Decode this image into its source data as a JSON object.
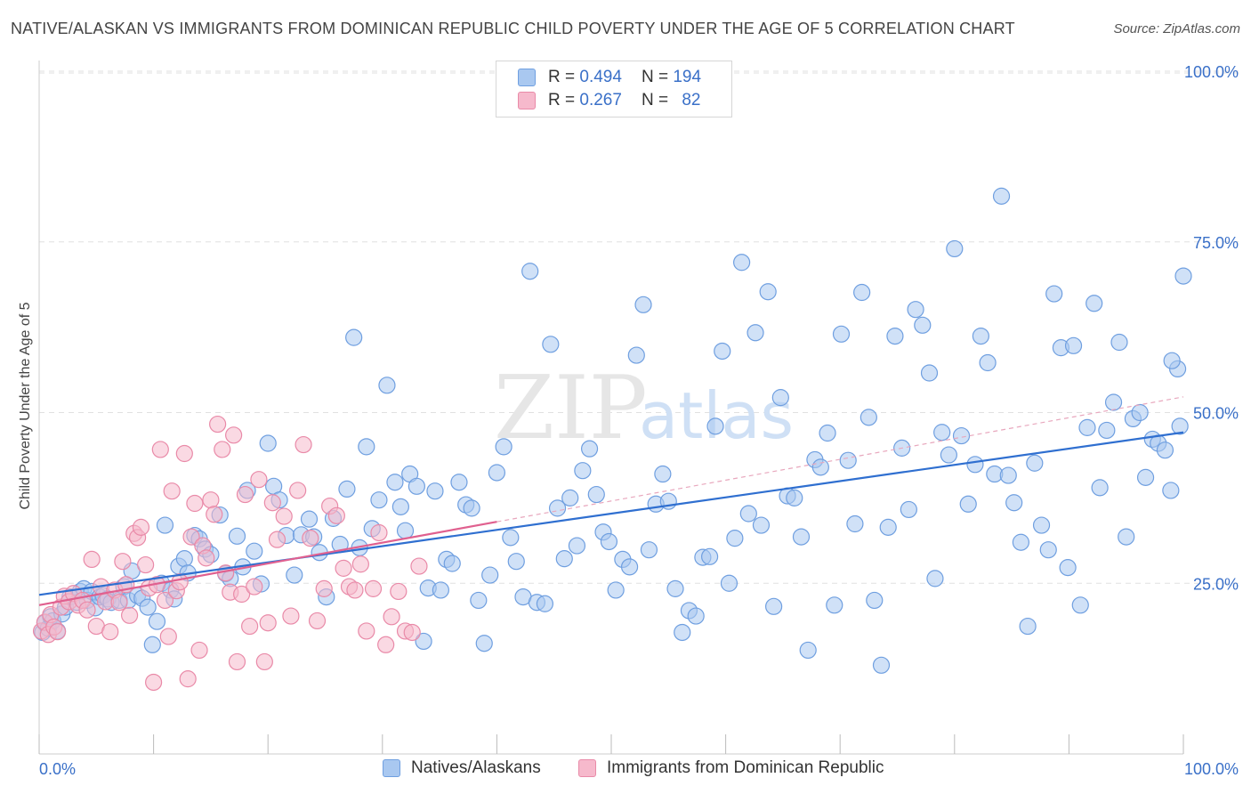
{
  "title": "NATIVE/ALASKAN VS IMMIGRANTS FROM DOMINICAN REPUBLIC CHILD POVERTY UNDER THE AGE OF 5 CORRELATION CHART",
  "source": "Source: ZipAtlas.com",
  "watermark": {
    "zip": "ZIP",
    "atlas": "atlas"
  },
  "legend": [
    {
      "r_label": "R =",
      "r_value": "0.494",
      "n_label": "N =",
      "n_value": "194"
    },
    {
      "r_label": "R =",
      "r_value": "0.267",
      "n_label": "N =",
      "n_value": "82"
    }
  ],
  "colors": {
    "blue_fill": "#a9c8f0",
    "blue_stroke": "#6f9fe0",
    "blue_line": "#2f6fd0",
    "pink_fill": "#f6b9cc",
    "pink_stroke": "#e98aa8",
    "pink_line": "#e0608f",
    "grid": "#e0e0e0",
    "axis_label": "#3a70c8"
  },
  "chart_data": {
    "type": "scatter",
    "xlabel": "",
    "ylabel": "Child Poverty Under the Age of 5",
    "xlim": [
      0,
      100
    ],
    "ylim": [
      0,
      100
    ],
    "x_tick_labels": [
      {
        "value": 0,
        "label": "0.0%"
      },
      {
        "value": 100,
        "label": "100.0%"
      }
    ],
    "y_tick_labels": [
      {
        "value": 100,
        "label": "100.0%"
      },
      {
        "value": 75,
        "label": "75.0%"
      },
      {
        "value": 50,
        "label": "50.0%"
      },
      {
        "value": 25,
        "label": "25.0%"
      }
    ],
    "grid": true,
    "series": [
      {
        "name": "Natives/Alaskans",
        "color": "#a9c8f0",
        "trend": {
          "x": [
            0,
            100
          ],
          "y": [
            23.3,
            47.1
          ]
        },
        "points": [
          [
            0.3,
            17.8
          ],
          [
            0.5,
            19.2
          ],
          [
            0.8,
            18.4
          ],
          [
            1.0,
            20.1
          ],
          [
            1.2,
            19.5
          ],
          [
            1.6,
            18.0
          ],
          [
            2.0,
            20.5
          ],
          [
            2.3,
            21.5
          ],
          [
            2.7,
            23.0
          ],
          [
            3.3,
            22.2
          ],
          [
            3.6,
            23.8
          ],
          [
            3.9,
            24.2
          ],
          [
            4.2,
            22.5
          ],
          [
            4.6,
            23.8
          ],
          [
            4.9,
            21.4
          ],
          [
            5.3,
            23.0
          ],
          [
            5.6,
            23.2
          ],
          [
            6.0,
            22.7
          ],
          [
            6.3,
            22.2
          ],
          [
            7.0,
            22.5
          ],
          [
            7.4,
            24.5
          ],
          [
            7.8,
            22.5
          ],
          [
            8.1,
            26.8
          ],
          [
            8.6,
            23.2
          ],
          [
            9.0,
            22.8
          ],
          [
            9.5,
            21.5
          ],
          [
            9.9,
            16.0
          ],
          [
            10.3,
            19.4
          ],
          [
            10.7,
            25.0
          ],
          [
            11.0,
            33.5
          ],
          [
            11.5,
            24.0
          ],
          [
            11.8,
            22.7
          ],
          [
            12.2,
            27.5
          ],
          [
            12.7,
            28.6
          ],
          [
            13.0,
            26.5
          ],
          [
            13.6,
            32.0
          ],
          [
            14.0,
            31.5
          ],
          [
            14.5,
            30.0
          ],
          [
            15.0,
            29.2
          ],
          [
            15.8,
            35.0
          ],
          [
            16.3,
            26.4
          ],
          [
            16.7,
            25.7
          ],
          [
            17.3,
            31.9
          ],
          [
            17.8,
            27.4
          ],
          [
            18.2,
            38.6
          ],
          [
            18.8,
            29.7
          ],
          [
            19.4,
            24.9
          ],
          [
            20.0,
            45.5
          ],
          [
            20.5,
            39.2
          ],
          [
            21.0,
            37.2
          ],
          [
            21.6,
            32.0
          ],
          [
            22.3,
            26.2
          ],
          [
            22.9,
            32.1
          ],
          [
            23.6,
            34.4
          ],
          [
            24.0,
            31.8
          ],
          [
            24.5,
            29.5
          ],
          [
            25.1,
            23.0
          ],
          [
            25.7,
            34.5
          ],
          [
            26.3,
            30.7
          ],
          [
            26.9,
            38.8
          ],
          [
            27.5,
            61.0
          ],
          [
            28.0,
            30.2
          ],
          [
            28.6,
            45.0
          ],
          [
            29.1,
            33.0
          ],
          [
            29.7,
            37.2
          ],
          [
            30.4,
            54.0
          ],
          [
            31.1,
            39.8
          ],
          [
            31.6,
            36.2
          ],
          [
            32.0,
            32.7
          ],
          [
            32.4,
            41.0
          ],
          [
            33.0,
            39.2
          ],
          [
            33.6,
            16.5
          ],
          [
            34.0,
            24.3
          ],
          [
            34.6,
            38.5
          ],
          [
            35.1,
            24.0
          ],
          [
            35.6,
            28.5
          ],
          [
            36.1,
            27.9
          ],
          [
            36.7,
            39.8
          ],
          [
            37.3,
            36.5
          ],
          [
            37.8,
            36.0
          ],
          [
            38.4,
            22.5
          ],
          [
            38.9,
            16.2
          ],
          [
            39.4,
            26.2
          ],
          [
            40.0,
            41.2
          ],
          [
            40.6,
            45.0
          ],
          [
            41.2,
            31.7
          ],
          [
            41.7,
            28.2
          ],
          [
            42.3,
            23.0
          ],
          [
            42.9,
            70.7
          ],
          [
            43.5,
            22.2
          ],
          [
            44.2,
            22.0
          ],
          [
            44.7,
            60.0
          ],
          [
            45.3,
            36.0
          ],
          [
            45.9,
            28.6
          ],
          [
            46.4,
            37.5
          ],
          [
            47.0,
            30.5
          ],
          [
            47.5,
            41.5
          ],
          [
            48.1,
            44.7
          ],
          [
            48.7,
            38.0
          ],
          [
            49.3,
            32.5
          ],
          [
            49.8,
            31.1
          ],
          [
            50.4,
            24.0
          ],
          [
            51.0,
            28.5
          ],
          [
            51.6,
            27.4
          ],
          [
            52.2,
            58.4
          ],
          [
            52.8,
            65.8
          ],
          [
            53.3,
            29.9
          ],
          [
            53.9,
            36.6
          ],
          [
            54.5,
            41.0
          ],
          [
            55.0,
            37.0
          ],
          [
            55.6,
            24.2
          ],
          [
            56.2,
            17.8
          ],
          [
            56.8,
            21.0
          ],
          [
            57.4,
            20.2
          ],
          [
            58.0,
            28.8
          ],
          [
            58.6,
            28.9
          ],
          [
            59.1,
            48.0
          ],
          [
            59.7,
            59.0
          ],
          [
            60.3,
            25.0
          ],
          [
            60.8,
            31.6
          ],
          [
            61.4,
            72.0
          ],
          [
            62.0,
            35.2
          ],
          [
            62.6,
            61.7
          ],
          [
            63.1,
            33.5
          ],
          [
            63.7,
            67.7
          ],
          [
            64.2,
            21.6
          ],
          [
            64.8,
            52.2
          ],
          [
            65.4,
            37.8
          ],
          [
            66.0,
            37.5
          ],
          [
            66.6,
            31.8
          ],
          [
            67.2,
            15.2
          ],
          [
            67.8,
            43.1
          ],
          [
            68.3,
            42.0
          ],
          [
            68.9,
            47.0
          ],
          [
            69.5,
            21.8
          ],
          [
            70.1,
            61.5
          ],
          [
            70.7,
            43.0
          ],
          [
            71.3,
            33.7
          ],
          [
            71.9,
            67.6
          ],
          [
            72.5,
            49.3
          ],
          [
            73.0,
            22.5
          ],
          [
            73.6,
            13.0
          ],
          [
            74.2,
            33.2
          ],
          [
            74.8,
            61.2
          ],
          [
            75.4,
            44.8
          ],
          [
            76.0,
            35.8
          ],
          [
            76.6,
            65.1
          ],
          [
            77.2,
            62.8
          ],
          [
            77.8,
            55.8
          ],
          [
            78.3,
            25.7
          ],
          [
            78.9,
            47.1
          ],
          [
            79.5,
            43.8
          ],
          [
            80.0,
            74.0
          ],
          [
            80.6,
            46.6
          ],
          [
            81.2,
            36.6
          ],
          [
            81.8,
            42.4
          ],
          [
            82.3,
            61.2
          ],
          [
            82.9,
            57.3
          ],
          [
            83.5,
            41.0
          ],
          [
            84.1,
            81.7
          ],
          [
            84.7,
            40.8
          ],
          [
            85.2,
            36.8
          ],
          [
            85.8,
            31.0
          ],
          [
            86.4,
            18.7
          ],
          [
            87.0,
            42.6
          ],
          [
            87.6,
            33.5
          ],
          [
            88.2,
            29.9
          ],
          [
            88.7,
            67.4
          ],
          [
            89.3,
            59.5
          ],
          [
            89.9,
            27.3
          ],
          [
            90.4,
            59.8
          ],
          [
            91.0,
            21.8
          ],
          [
            91.6,
            47.8
          ],
          [
            92.2,
            66.0
          ],
          [
            92.7,
            39.0
          ],
          [
            93.3,
            47.4
          ],
          [
            93.9,
            51.5
          ],
          [
            94.4,
            60.3
          ],
          [
            95.0,
            31.8
          ],
          [
            95.6,
            49.1
          ],
          [
            96.2,
            50.0
          ],
          [
            96.7,
            40.5
          ],
          [
            97.3,
            46.1
          ],
          [
            97.8,
            45.5
          ],
          [
            98.4,
            44.5
          ],
          [
            98.9,
            38.6
          ],
          [
            99.5,
            56.4
          ],
          [
            99.0,
            57.6
          ],
          [
            99.7,
            48.0
          ],
          [
            100.0,
            70.0
          ]
        ]
      },
      {
        "name": "Immigrants from Dominican Republic",
        "color": "#f6b9cc",
        "trend": {
          "x": [
            0,
            40
          ],
          "y": [
            21.8,
            34.0
          ]
        },
        "points": [
          [
            0.2,
            18.0
          ],
          [
            0.5,
            19.3
          ],
          [
            0.8,
            17.5
          ],
          [
            1.0,
            20.4
          ],
          [
            1.3,
            18.6
          ],
          [
            1.6,
            17.9
          ],
          [
            1.9,
            21.5
          ],
          [
            2.2,
            23.1
          ],
          [
            2.6,
            22.3
          ],
          [
            3.0,
            23.5
          ],
          [
            3.4,
            21.8
          ],
          [
            3.8,
            22.5
          ],
          [
            4.2,
            21.1
          ],
          [
            4.6,
            28.5
          ],
          [
            5.0,
            18.7
          ],
          [
            5.4,
            24.5
          ],
          [
            5.8,
            22.3
          ],
          [
            6.2,
            17.9
          ],
          [
            6.6,
            24.0
          ],
          [
            7.0,
            22.2
          ],
          [
            7.3,
            28.2
          ],
          [
            7.6,
            24.8
          ],
          [
            7.9,
            20.3
          ],
          [
            8.3,
            32.3
          ],
          [
            8.6,
            31.7
          ],
          [
            8.9,
            33.2
          ],
          [
            9.3,
            27.7
          ],
          [
            9.6,
            24.3
          ],
          [
            10.0,
            10.5
          ],
          [
            10.3,
            24.8
          ],
          [
            10.6,
            44.6
          ],
          [
            11.0,
            22.5
          ],
          [
            11.3,
            17.2
          ],
          [
            11.6,
            38.5
          ],
          [
            12.0,
            23.9
          ],
          [
            12.3,
            25.2
          ],
          [
            12.7,
            44.0
          ],
          [
            13.0,
            11.0
          ],
          [
            13.3,
            31.8
          ],
          [
            13.6,
            36.7
          ],
          [
            14.0,
            15.2
          ],
          [
            14.3,
            30.5
          ],
          [
            14.6,
            28.7
          ],
          [
            15.0,
            37.2
          ],
          [
            15.3,
            35.1
          ],
          [
            15.6,
            48.3
          ],
          [
            16.0,
            44.6
          ],
          [
            16.3,
            26.5
          ],
          [
            16.7,
            23.7
          ],
          [
            17.0,
            46.7
          ],
          [
            17.3,
            13.5
          ],
          [
            17.7,
            23.4
          ],
          [
            18.0,
            38.0
          ],
          [
            18.4,
            18.7
          ],
          [
            18.8,
            24.5
          ],
          [
            19.2,
            40.2
          ],
          [
            19.7,
            13.5
          ],
          [
            20.0,
            19.2
          ],
          [
            20.4,
            36.8
          ],
          [
            20.8,
            31.4
          ],
          [
            21.4,
            34.8
          ],
          [
            22.0,
            20.2
          ],
          [
            22.6,
            38.6
          ],
          [
            23.1,
            45.3
          ],
          [
            23.7,
            31.6
          ],
          [
            24.3,
            19.5
          ],
          [
            24.9,
            24.2
          ],
          [
            25.4,
            36.3
          ],
          [
            26.0,
            34.9
          ],
          [
            26.6,
            27.2
          ],
          [
            27.1,
            24.5
          ],
          [
            27.6,
            24.0
          ],
          [
            28.1,
            27.8
          ],
          [
            28.6,
            18.0
          ],
          [
            29.2,
            24.2
          ],
          [
            29.7,
            32.4
          ],
          [
            30.3,
            16.0
          ],
          [
            30.8,
            20.1
          ],
          [
            31.4,
            23.8
          ],
          [
            32.0,
            18.0
          ],
          [
            32.6,
            17.8
          ],
          [
            33.2,
            27.5
          ]
        ]
      }
    ]
  }
}
